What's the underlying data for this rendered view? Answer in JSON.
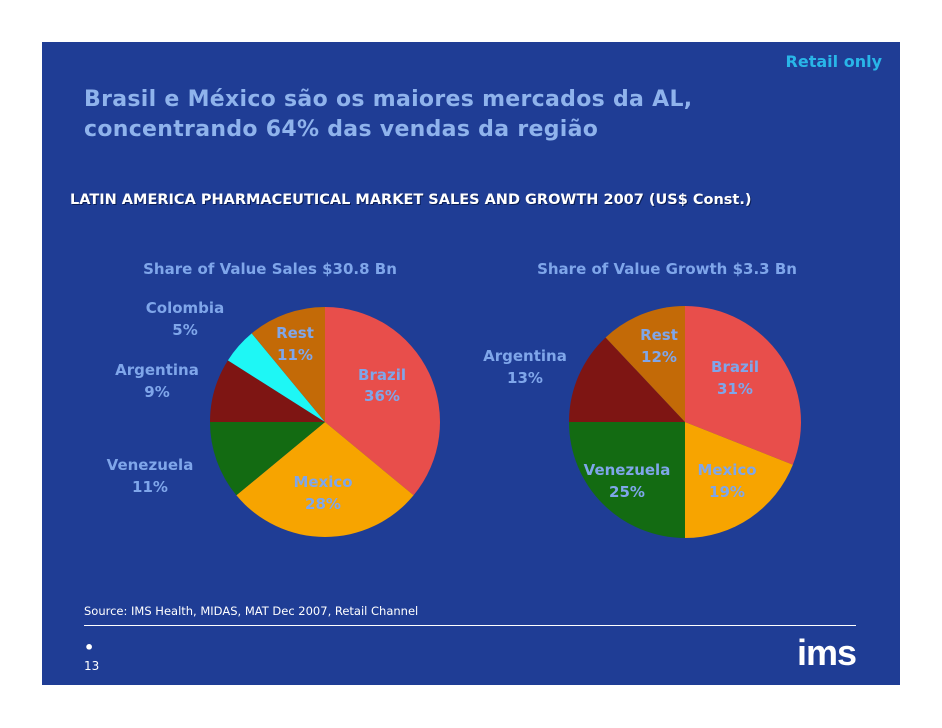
{
  "header": {
    "tag": "Retail only",
    "title_line1": "Brasil e México são os maiores mercados da AL,",
    "title_line2": "concentrando 64% das vendas da região",
    "subtitle": "LATIN AMERICA PHARMACEUTICAL MARKET SALES AND GROWTH 2007 (US$ Const.)"
  },
  "chart_data": [
    {
      "type": "pie",
      "title": "Share of Value Sales $30.8 Bn",
      "unit": "%",
      "slices": [
        {
          "label": "Brazil",
          "value": 36,
          "value_label": "36%",
          "color": "#e84e4b"
        },
        {
          "label": "Mexico",
          "value": 28,
          "value_label": "28%",
          "color": "#f7a400"
        },
        {
          "label": "Venezuela",
          "value": 11,
          "value_label": "11%",
          "color": "#136b12"
        },
        {
          "label": "Argentina",
          "value": 9,
          "value_label": "9%",
          "color": "#7e1513"
        },
        {
          "label": "Colombia",
          "value": 5,
          "value_label": "5%",
          "color": "#1ef7f5"
        },
        {
          "label": "Rest",
          "value": 11,
          "value_label": "11%",
          "color": "#c36a07"
        }
      ]
    },
    {
      "type": "pie",
      "title": "Share of Value Growth $3.3 Bn",
      "unit": "%",
      "slices": [
        {
          "label": "Brazil",
          "value": 31,
          "value_label": "31%",
          "color": "#e84e4b"
        },
        {
          "label": "Mexico",
          "value": 19,
          "value_label": "19%",
          "color": "#f7a400"
        },
        {
          "label": "Venezuela",
          "value": 25,
          "value_label": "25%",
          "color": "#136b12"
        },
        {
          "label": "Argentina",
          "value": 13,
          "value_label": "13%",
          "color": "#7e1513"
        },
        {
          "label": "Rest",
          "value": 12,
          "value_label": "12%",
          "color": "#c36a07"
        }
      ]
    }
  ],
  "footer": {
    "source": "Source: IMS Health, MIDAS, MAT Dec 2007, Retail Channel",
    "bullet": "•",
    "page": "13",
    "logo": "ims"
  },
  "colors": {
    "background": "#1f3d95",
    "title": "#8fb3ec",
    "tag": "#29b6e8",
    "slice_label": "#7fa6ea"
  }
}
